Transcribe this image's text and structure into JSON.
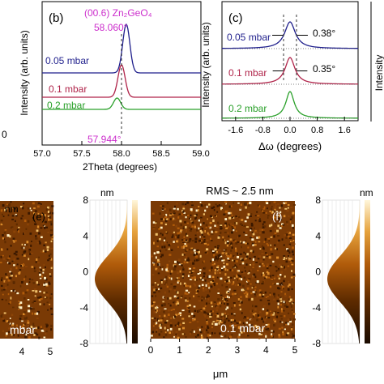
{
  "chart_data": [
    {
      "type": "line",
      "panel_label": "(b)",
      "xlabel": "2Theta (degrees)",
      "ylabel": "Intensity (arb. units)",
      "xlim": [
        57.0,
        59.0
      ],
      "xticks": [
        "57.0",
        "57.5",
        "58.0",
        "58.5",
        "59.0"
      ],
      "peak_label": "(00.6) Zn₂GeO₄",
      "annotations": [
        "58.060°",
        "57.944°"
      ],
      "series": [
        {
          "name": "0.05 mbar",
          "color": "#1f1f8c",
          "peak_x": 58.06,
          "peak_height": 1.0,
          "offset": 2
        },
        {
          "name": "0.1 mbar",
          "color": "#b0244a",
          "peak_x": 58.0,
          "peak_height": 0.75,
          "offset": 1
        },
        {
          "name": "0.2 mbar",
          "color": "#2aa02a",
          "peak_x": 57.944,
          "peak_height": 0.35,
          "offset": 0
        }
      ]
    },
    {
      "type": "line",
      "panel_label": "(c)",
      "xlabel": "Δω (degrees)",
      "ylabel": "Intensity (arb. units)",
      "xlim": [
        -2.0,
        2.0
      ],
      "xticks": [
        "-1.6",
        "-0.8",
        "0.0",
        "0.8",
        "1.6"
      ],
      "annotations": [
        "0.38°",
        "0.35°"
      ],
      "series": [
        {
          "name": "0.05 mbar",
          "color": "#1f1f8c",
          "fwhm": 0.38,
          "offset": 2
        },
        {
          "name": "0.1 mbar",
          "color": "#b0244a",
          "fwhm": 0.35,
          "offset": 1
        },
        {
          "name": "0.2 mbar",
          "color": "#2aa02a",
          "fwhm": 0.3,
          "offset": 0
        }
      ]
    },
    {
      "type": "heatmap",
      "panel_label": "(e)",
      "overlay_label": "mbar",
      "unit_label": "nm",
      "xticks": [
        "4",
        "5"
      ]
    },
    {
      "type": "heatmap",
      "panel_label": "(f)",
      "title": "RMS ~ 2.5 nm",
      "overlay_label": "0.1 mbar",
      "xlabel": "μm",
      "xticks": [
        "0",
        "1",
        "2",
        "3",
        "4",
        "5"
      ],
      "colorbar_label": "nm",
      "colorbar_ticks": [
        "8",
        "4",
        "0",
        "-4",
        "-8"
      ],
      "zlim": [
        -8,
        8
      ]
    }
  ],
  "figure": {
    "partial_left_label": "0",
    "partial_nm_label": "nm",
    "right_colorbar_label": "nm",
    "right_colorbar_ticks": [
      "8",
      "4",
      "0",
      "-4",
      "-8"
    ],
    "right_partial_ylabel": "Intensity"
  }
}
